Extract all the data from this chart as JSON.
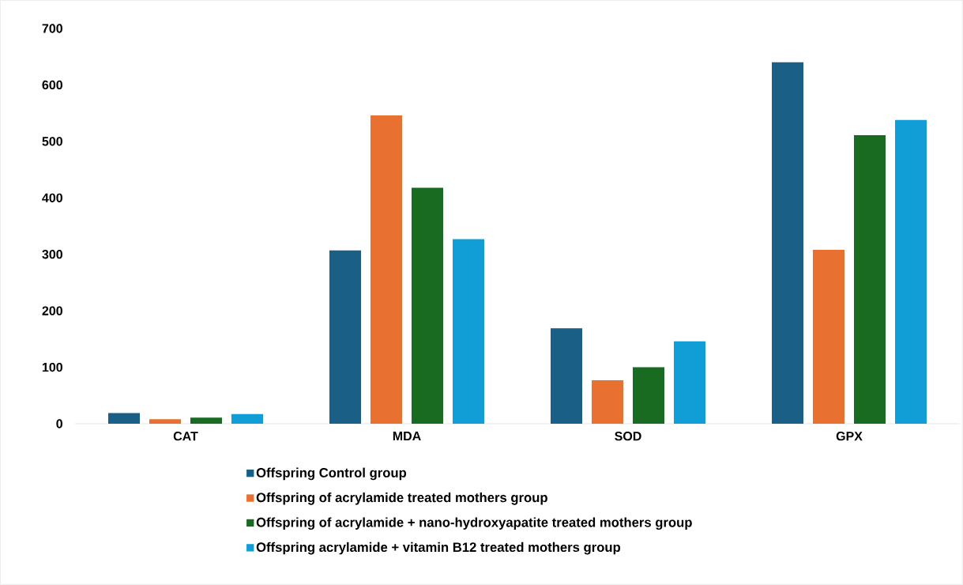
{
  "chart_data": {
    "type": "bar",
    "categories": [
      "CAT",
      "MDA",
      "SOD",
      "GPX"
    ],
    "series": [
      {
        "name": "Offspring Control group",
        "color": "#1a5f86",
        "values": [
          19,
          307,
          169,
          640
        ]
      },
      {
        "name": "Offspring  of acrylamide treated mothers group",
        "color": "#e87132",
        "values": [
          8,
          546,
          77,
          308
        ]
      },
      {
        "name": "Offspring of acrylamide + nano-hydroxyapatite treated mothers group",
        "color": "#196b22",
        "values": [
          11,
          418,
          100,
          511
        ]
      },
      {
        "name": "Offspring acrylamide + vitamin B12 treated mothers group",
        "color": "#119dd6",
        "values": [
          17,
          327,
          146,
          538
        ]
      }
    ],
    "ylim": [
      0,
      700
    ],
    "yticks": [
      0,
      100,
      200,
      300,
      400,
      500,
      600,
      700
    ],
    "legend": "bottom"
  }
}
